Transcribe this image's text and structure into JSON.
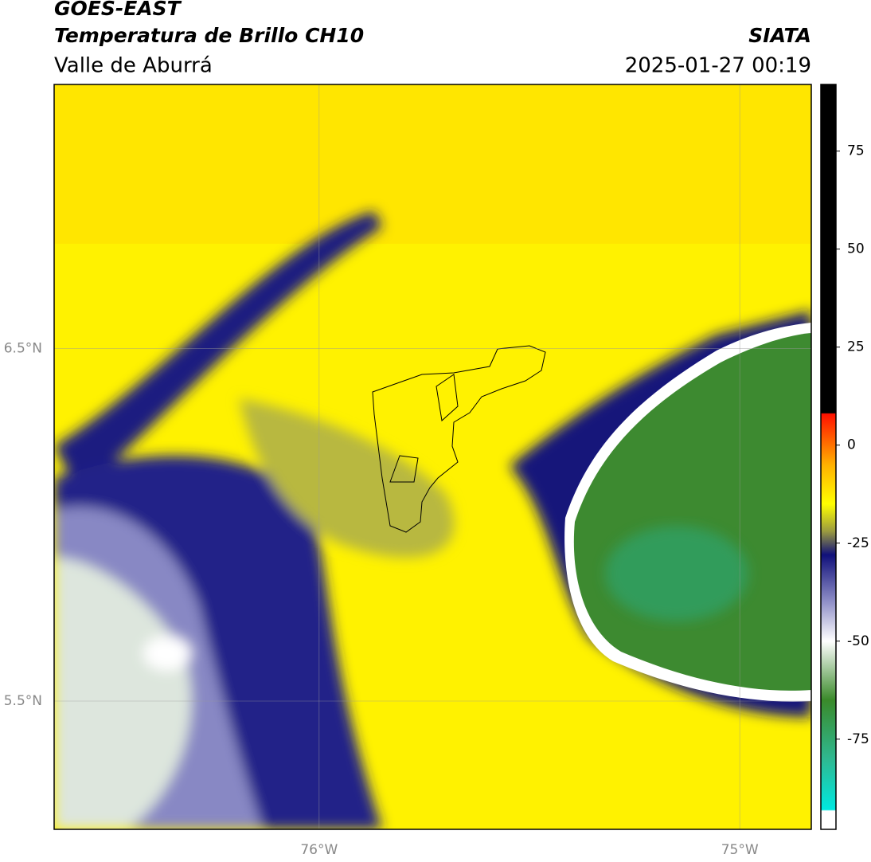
{
  "header": {
    "title": "GOES-EAST",
    "subtitle": "Temperatura de Brillo CH10",
    "region": "Valle de Aburrá",
    "agency": "SIATA",
    "timestamp": "2025-01-27 00:19"
  },
  "map": {
    "xlim": [
      -76.63,
      -74.83
    ],
    "ylim": [
      5.136,
      7.25
    ],
    "xticks": [
      {
        "value": -76,
        "label": "76°W"
      },
      {
        "value": -75,
        "label": "75°W"
      }
    ],
    "yticks": [
      {
        "value": 6.5,
        "label": "6.5°N"
      },
      {
        "value": 5.5,
        "label": "5.5°N"
      }
    ]
  },
  "colorbar": {
    "lim": [
      -98,
      92
    ],
    "ticks": [
      75,
      50,
      25,
      0,
      -25,
      -50,
      -75
    ],
    "stops": [
      {
        "value": -98,
        "color": "#ffffff"
      },
      {
        "value": -93.3,
        "color": "#ffffff"
      },
      {
        "value": -93,
        "color": "#00e8e0"
      },
      {
        "value": -80,
        "color": "#2fb890"
      },
      {
        "value": -65,
        "color": "#3a8a2a"
      },
      {
        "value": -50,
        "color": "#ffffff"
      },
      {
        "value": -40,
        "color": "#9090c8"
      },
      {
        "value": -28,
        "color": "#10107a"
      },
      {
        "value": -22,
        "color": "#9a9a40"
      },
      {
        "value": -15,
        "color": "#ffff00"
      },
      {
        "value": -5,
        "color": "#ffb000"
      },
      {
        "value": 8,
        "color": "#ff1000"
      },
      {
        "value": 8.2,
        "color": "#000000"
      },
      {
        "value": 92,
        "color": "#000000"
      }
    ]
  }
}
